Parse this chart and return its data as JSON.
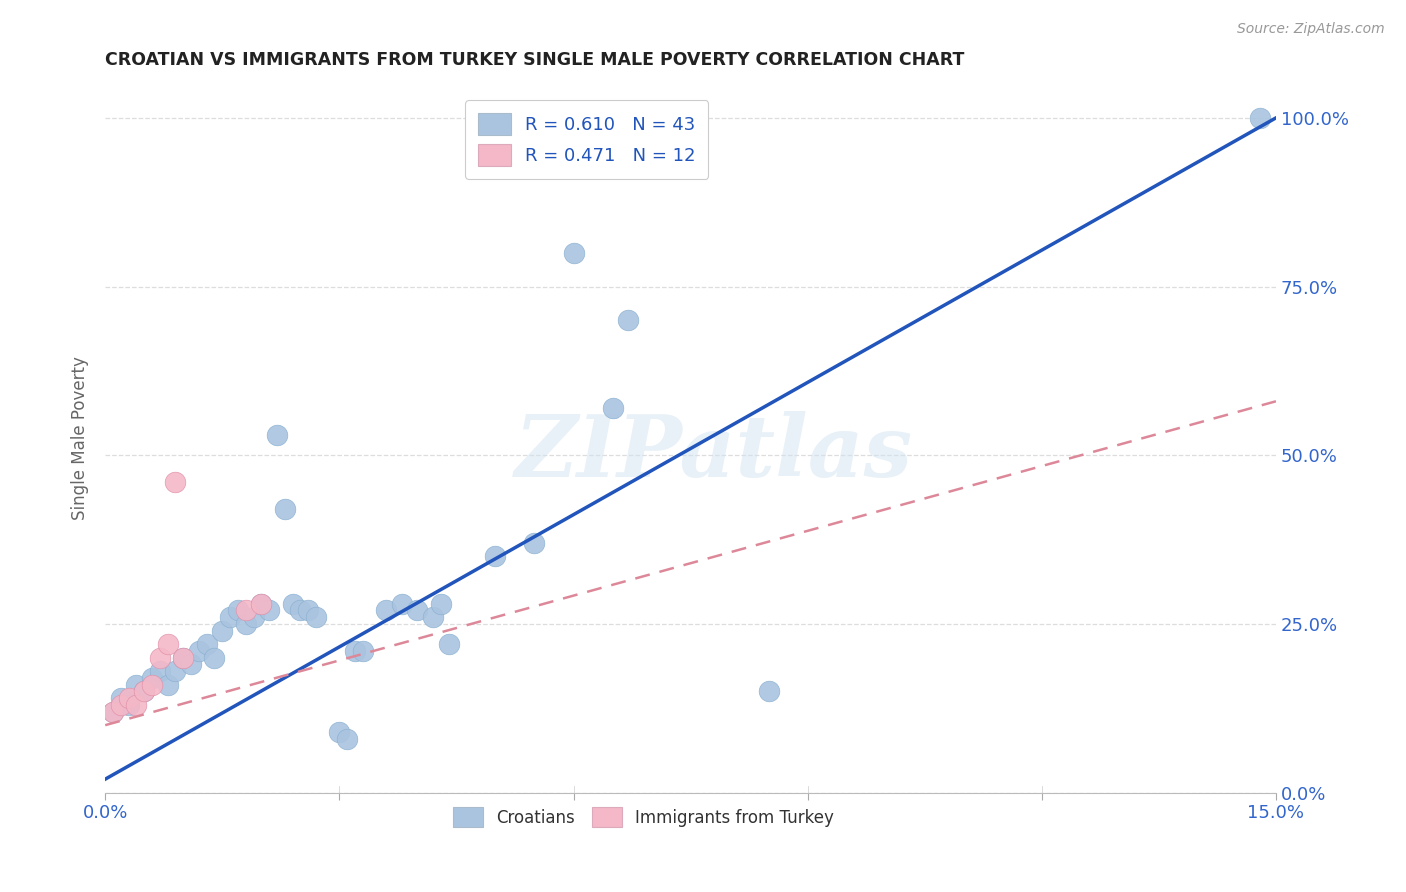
{
  "title": "CROATIAN VS IMMIGRANTS FROM TURKEY SINGLE MALE POVERTY CORRELATION CHART",
  "source": "Source: ZipAtlas.com",
  "ylabel_label": "Single Male Poverty",
  "xlim": [
    0.0,
    0.15
  ],
  "ylim": [
    0.0,
    1.05
  ],
  "background_color": "#ffffff",
  "grid_color": "#dddddd",
  "watermark": "ZIPatlas",
  "croatian_color": "#aac4e0",
  "turkey_color": "#f4b8c8",
  "line_color_blue": "#2255bb",
  "line_color_pink": "#dd8899",
  "blue_line_x": [
    0.0,
    0.15
  ],
  "blue_line_y": [
    0.02,
    1.0
  ],
  "pink_line_x": [
    0.0,
    0.15
  ],
  "pink_line_y": [
    0.1,
    0.58
  ],
  "croatian_scatter": [
    [
      0.001,
      0.12
    ],
    [
      0.002,
      0.14
    ],
    [
      0.003,
      0.13
    ],
    [
      0.004,
      0.16
    ],
    [
      0.005,
      0.15
    ],
    [
      0.006,
      0.17
    ],
    [
      0.007,
      0.18
    ],
    [
      0.008,
      0.16
    ],
    [
      0.009,
      0.18
    ],
    [
      0.01,
      0.2
    ],
    [
      0.011,
      0.19
    ],
    [
      0.012,
      0.21
    ],
    [
      0.013,
      0.22
    ],
    [
      0.014,
      0.2
    ],
    [
      0.015,
      0.24
    ],
    [
      0.016,
      0.26
    ],
    [
      0.017,
      0.27
    ],
    [
      0.018,
      0.25
    ],
    [
      0.019,
      0.26
    ],
    [
      0.02,
      0.28
    ],
    [
      0.021,
      0.27
    ],
    [
      0.022,
      0.53
    ],
    [
      0.023,
      0.42
    ],
    [
      0.024,
      0.28
    ],
    [
      0.025,
      0.27
    ],
    [
      0.026,
      0.27
    ],
    [
      0.027,
      0.26
    ],
    [
      0.03,
      0.09
    ],
    [
      0.031,
      0.08
    ],
    [
      0.032,
      0.21
    ],
    [
      0.033,
      0.21
    ],
    [
      0.036,
      0.27
    ],
    [
      0.038,
      0.28
    ],
    [
      0.04,
      0.27
    ],
    [
      0.042,
      0.26
    ],
    [
      0.043,
      0.28
    ],
    [
      0.044,
      0.22
    ],
    [
      0.05,
      0.35
    ],
    [
      0.055,
      0.37
    ],
    [
      0.06,
      0.8
    ],
    [
      0.065,
      0.57
    ],
    [
      0.067,
      0.7
    ],
    [
      0.085,
      0.15
    ],
    [
      0.148,
      1.0
    ]
  ],
  "turkey_scatter": [
    [
      0.001,
      0.12
    ],
    [
      0.002,
      0.13
    ],
    [
      0.003,
      0.14
    ],
    [
      0.004,
      0.13
    ],
    [
      0.005,
      0.15
    ],
    [
      0.006,
      0.16
    ],
    [
      0.007,
      0.2
    ],
    [
      0.008,
      0.22
    ],
    [
      0.009,
      0.46
    ],
    [
      0.01,
      0.2
    ],
    [
      0.018,
      0.27
    ],
    [
      0.02,
      0.28
    ]
  ]
}
